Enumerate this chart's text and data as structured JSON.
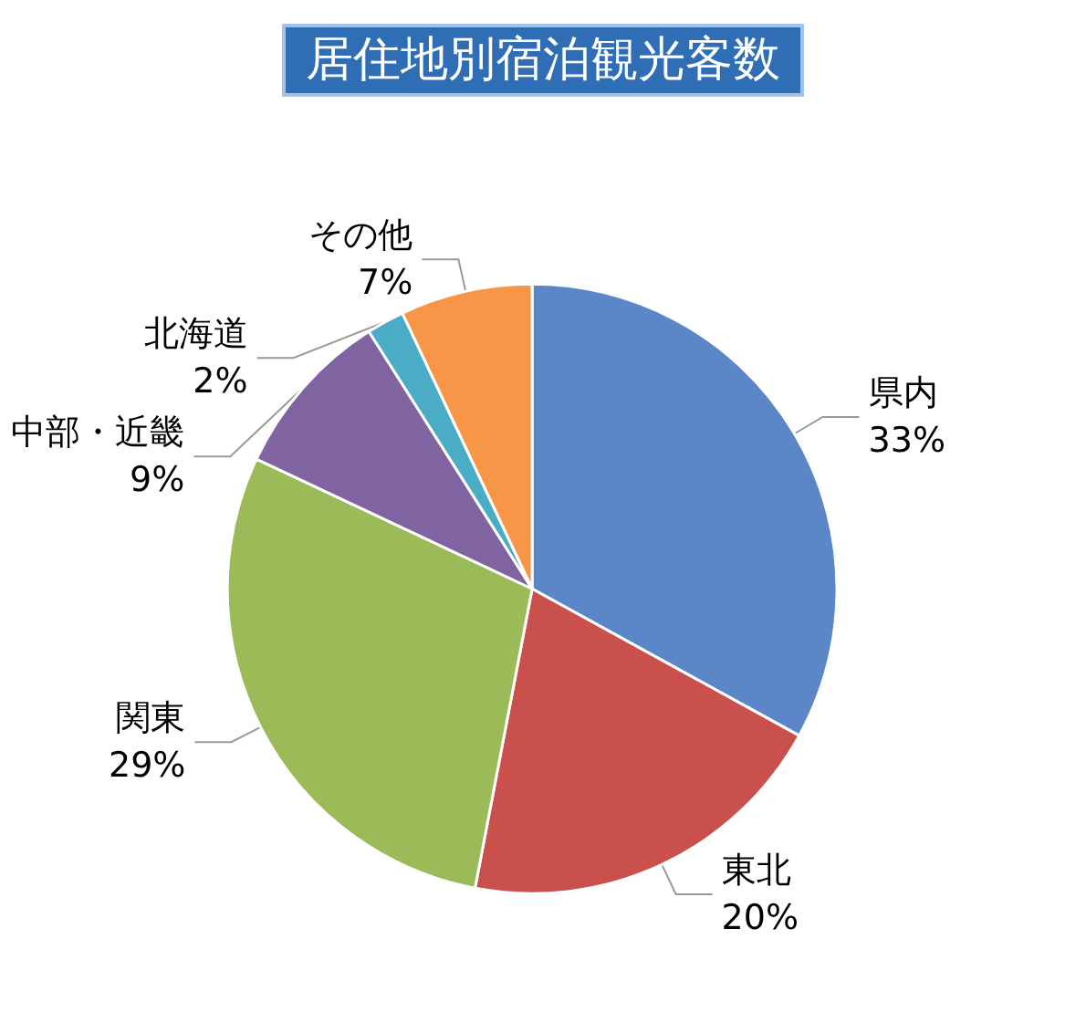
{
  "chart_data": {
    "type": "pie",
    "title": "居住地別宿泊観光客数",
    "categories": [
      "県内",
      "東北",
      "関東",
      "中部・近畿",
      "北海道",
      "その他"
    ],
    "values": [
      33,
      20,
      29,
      9,
      2,
      7
    ],
    "value_labels": [
      "33%",
      "20%",
      "29%",
      "9%",
      "2%",
      "7%"
    ],
    "colors": [
      "#5b87c8",
      "#c9504d",
      "#9bbb59",
      "#8064a2",
      "#4bacc6",
      "#f79646"
    ],
    "legend": false
  }
}
